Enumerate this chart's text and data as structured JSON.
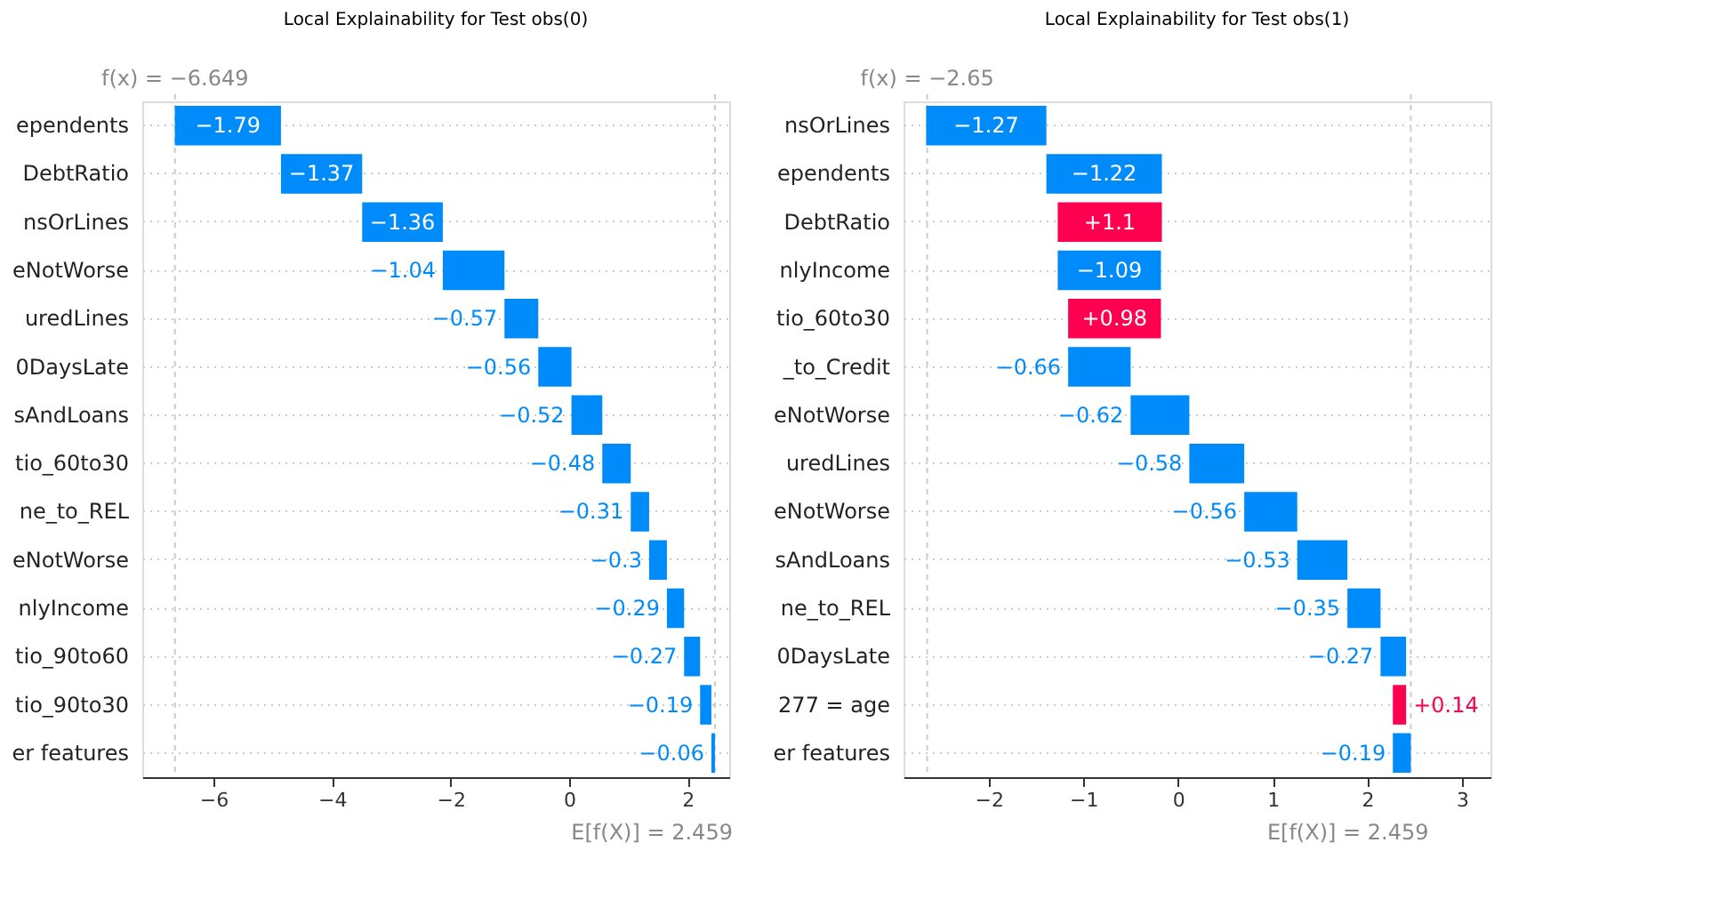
{
  "chart_data": [
    {
      "type": "bar",
      "orientation": "horizontal",
      "title": "Local Explainability for Test obs(0)",
      "grid": "y",
      "categories": [
        "ependents",
        "DebtRatio",
        "nsOrLines",
        "eNotWorse",
        "uredLines",
        "0DaysLate",
        "sAndLoans",
        "tio_60to30",
        "ne_to_REL",
        "eNotWorse",
        "nlyIncome",
        "tio_90to60",
        "tio_90to30",
        "er features"
      ],
      "values": [
        -1.79,
        -1.37,
        -1.36,
        -1.04,
        -0.57,
        -0.56,
        -0.52,
        -0.48,
        -0.31,
        -0.3,
        -0.29,
        -0.27,
        -0.19,
        -0.06
      ],
      "base": [
        -4.861,
        -3.491,
        -2.131,
        -1.091,
        -0.521,
        0.039,
        0.559,
        1.039,
        1.349,
        1.649,
        1.939,
        2.209,
        2.399,
        2.459
      ],
      "colors": [
        "#008bfb",
        "#008bfb",
        "#008bfb",
        "#008bfb",
        "#008bfb",
        "#008bfb",
        "#008bfb",
        "#008bfb",
        "#008bfb",
        "#008bfb",
        "#008bfb",
        "#008bfb",
        "#008bfb",
        "#008bfb"
      ],
      "value_labels": [
        "−1.79",
        "−1.37",
        "−1.36",
        "−1.04",
        "−0.57",
        "−0.56",
        "−0.52",
        "−0.48",
        "−0.31",
        "−0.3",
        "−0.29",
        "−0.27",
        "−0.19",
        "−0.06"
      ],
      "xlim": [
        -7.2,
        2.7
      ],
      "xticks": [
        {
          "value": -6,
          "label": "−6"
        },
        {
          "value": -4,
          "label": "−4"
        },
        {
          "value": -2,
          "label": "−2"
        },
        0,
        2
      ],
      "ref_lines": [
        {
          "axis": "x",
          "value": -6.649,
          "label": "f(x) = −6.649",
          "color": "#cccccc",
          "line_style": "dashed"
        },
        {
          "axis": "x",
          "value": 2.459,
          "label": "E[f(X)] = 2.459",
          "color": "#cccccc",
          "line_style": "dashed"
        }
      ]
    },
    {
      "type": "bar",
      "orientation": "horizontal",
      "title": "Local Explainability for Test obs(1)",
      "grid": "y",
      "categories": [
        "nsOrLines",
        "ependents",
        "DebtRatio",
        "nlyIncome",
        "tio_60to30",
        "_to_Credit",
        "eNotWorse",
        "uredLines",
        "eNotWorse",
        "sAndLoans",
        "ne_to_REL",
        "0DaysLate",
        "277 = age",
        "er features"
      ],
      "values": [
        -1.27,
        -1.22,
        1.1,
        -1.09,
        0.98,
        -0.66,
        -0.62,
        -0.58,
        -0.56,
        -0.53,
        -0.35,
        -0.27,
        0.14,
        -0.19
      ],
      "base": [
        -1.391,
        -0.171,
        -1.271,
        -0.181,
        -1.161,
        -0.501,
        0.119,
        0.699,
        1.259,
        1.789,
        2.139,
        2.409,
        2.269,
        2.459
      ],
      "colors": [
        "#008bfb",
        "#008bfb",
        "#ff0051",
        "#008bfb",
        "#ff0051",
        "#008bfb",
        "#008bfb",
        "#008bfb",
        "#008bfb",
        "#008bfb",
        "#008bfb",
        "#008bfb",
        "#ff0051",
        "#008bfb"
      ],
      "value_labels": [
        "−1.27",
        "−1.22",
        "+1.1",
        "−1.09",
        "+0.98",
        "−0.66",
        "−0.62",
        "−0.58",
        "−0.56",
        "−0.53",
        "−0.35",
        "−0.27",
        "+0.14",
        "−0.19"
      ],
      "xlim": [
        -2.9,
        3.3
      ],
      "xticks": [
        {
          "value": -2,
          "label": "−2"
        },
        {
          "value": -1,
          "label": "−1"
        },
        0,
        1,
        2,
        3
      ],
      "ref_lines": [
        {
          "axis": "x",
          "value": -2.65,
          "label": "f(x) = −2.65",
          "color": "#cccccc",
          "line_style": "dashed"
        },
        {
          "axis": "x",
          "value": 2.459,
          "label": "E[f(X)] = 2.459",
          "color": "#cccccc",
          "line_style": "dashed"
        }
      ]
    }
  ]
}
